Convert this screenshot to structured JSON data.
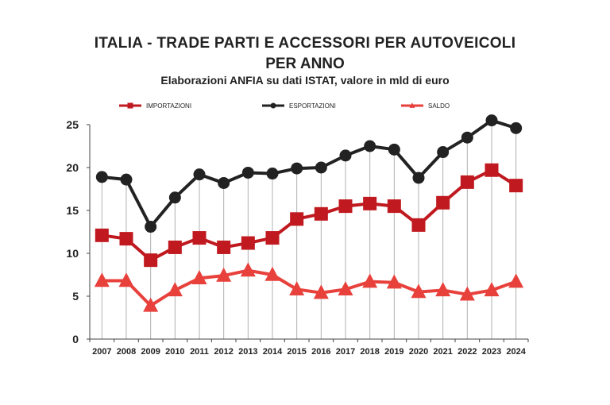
{
  "chart_data": {
    "type": "line",
    "title_line1": "ITALIA - TRADE PARTI E ACCESSORI PER AUTOVEICOLI",
    "title_line2": "PER ANNO",
    "subtitle": "Elaborazioni ANFIA su dati ISTAT, valore in mld di euro",
    "categories": [
      "2007",
      "2008",
      "2009",
      "2010",
      "2011",
      "2012",
      "2013",
      "2014",
      "2015",
      "2016",
      "2017",
      "2018",
      "2019",
      "2020",
      "2021",
      "2022",
      "2023",
      "2024"
    ],
    "ylim": [
      0,
      25
    ],
    "yticks": [
      0,
      5,
      10,
      15,
      20,
      25
    ],
    "legend_position": "top",
    "series": [
      {
        "name": "IMPORTAZIONI",
        "color": "#c0191f",
        "marker": "square",
        "values": [
          12.1,
          11.7,
          9.2,
          10.7,
          11.8,
          10.7,
          11.2,
          11.8,
          14.0,
          14.6,
          15.5,
          15.8,
          15.5,
          13.3,
          15.9,
          18.3,
          19.7,
          17.9
        ]
      },
      {
        "name": "ESPORTAZIONI",
        "color": "#222222",
        "marker": "circle",
        "values": [
          18.9,
          18.6,
          13.1,
          16.5,
          19.2,
          18.2,
          19.4,
          19.3,
          19.9,
          20.0,
          21.4,
          22.5,
          22.1,
          18.8,
          21.8,
          23.5,
          25.5,
          24.6
        ]
      },
      {
        "name": "SALDO",
        "color": "#e8413c",
        "marker": "triangle",
        "values": [
          6.8,
          6.8,
          3.9,
          5.7,
          7.1,
          7.4,
          8.0,
          7.5,
          5.8,
          5.4,
          5.8,
          6.7,
          6.6,
          5.5,
          5.7,
          5.2,
          5.7,
          6.7
        ]
      }
    ]
  }
}
